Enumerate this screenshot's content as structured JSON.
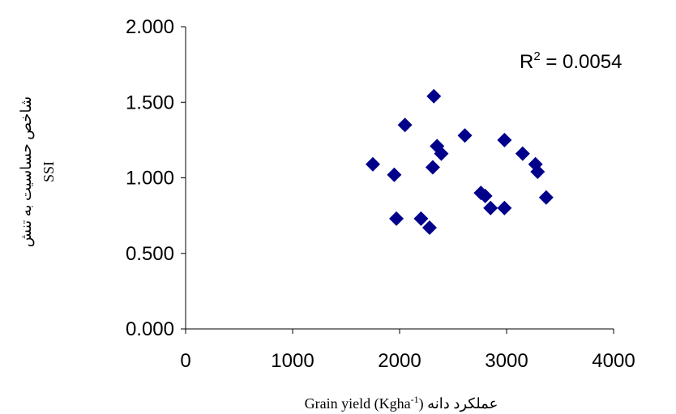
{
  "chart_data": {
    "type": "scatter",
    "xlabel": "Grain yield (Kgha-1) عملکرد دانه",
    "xlabel_parts": {
      "main": "Grain yield (Kgha",
      "sup": "-1",
      "tail": ") عملکرد دانه"
    },
    "ylabel_line1": "شاخص حساسیت به تنش",
    "ylabel_line2": "SSI",
    "annotation": {
      "base": "R",
      "sup": "2",
      "rest": " = 0.0054"
    },
    "xlim": [
      0,
      4000
    ],
    "ylim": [
      0,
      2
    ],
    "x_ticks": [
      0,
      1000,
      2000,
      3000,
      4000
    ],
    "x_tick_labels": [
      "0",
      "1000",
      "2000",
      "3000",
      "4000"
    ],
    "y_ticks": [
      0,
      0.5,
      1,
      1.5,
      2
    ],
    "y_tick_labels": [
      "0.000",
      "0.500",
      "1.000",
      "1.500",
      "2.000"
    ],
    "grid": false,
    "marker": "diamond",
    "marker_color": "#00008b",
    "points": [
      {
        "x": 1750,
        "y": 1.09
      },
      {
        "x": 1950,
        "y": 1.02
      },
      {
        "x": 1970,
        "y": 0.73
      },
      {
        "x": 2050,
        "y": 1.35
      },
      {
        "x": 2200,
        "y": 0.73
      },
      {
        "x": 2280,
        "y": 0.67
      },
      {
        "x": 2310,
        "y": 1.07
      },
      {
        "x": 2320,
        "y": 1.54
      },
      {
        "x": 2350,
        "y": 1.21
      },
      {
        "x": 2390,
        "y": 1.16
      },
      {
        "x": 2610,
        "y": 1.28
      },
      {
        "x": 2760,
        "y": 0.9
      },
      {
        "x": 2800,
        "y": 0.88
      },
      {
        "x": 2850,
        "y": 0.8
      },
      {
        "x": 2980,
        "y": 1.25
      },
      {
        "x": 2980,
        "y": 0.8
      },
      {
        "x": 3150,
        "y": 1.16
      },
      {
        "x": 3270,
        "y": 1.09
      },
      {
        "x": 3290,
        "y": 1.04
      },
      {
        "x": 3370,
        "y": 0.87
      }
    ]
  }
}
